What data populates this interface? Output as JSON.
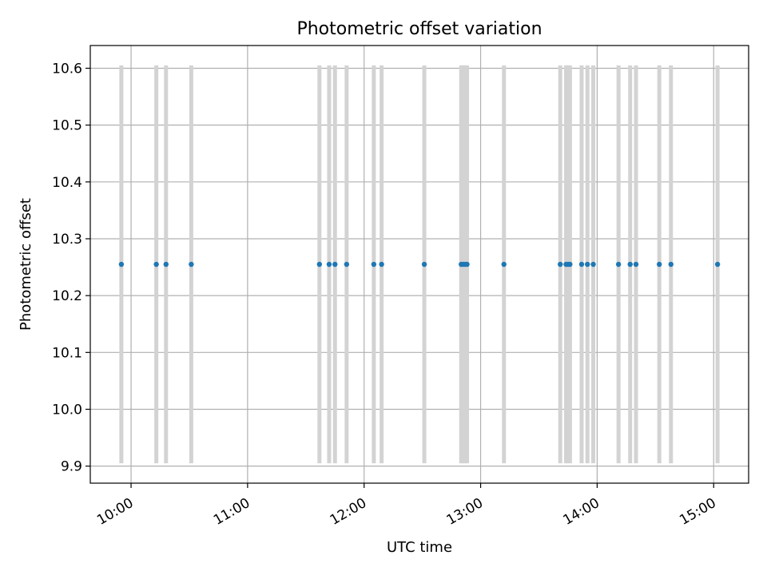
{
  "chart_data": {
    "type": "scatter",
    "title": "Photometric offset variation",
    "xlabel": "UTC time",
    "ylabel": "Photometric offset",
    "xlim": [
      "09:39",
      "15:18"
    ],
    "ylim": [
      9.87,
      10.64
    ],
    "x_ticks": [
      "10:00",
      "11:00",
      "12:00",
      "13:00",
      "14:00",
      "15:00"
    ],
    "y_ticks": [
      9.9,
      10.0,
      10.1,
      10.2,
      10.3,
      10.4,
      10.5,
      10.6
    ],
    "grid": true,
    "error_bar_range": [
      9.905,
      10.605
    ],
    "colors": {
      "points": "#1f77b4",
      "error_bars": "#d3d3d3",
      "grid": "#b0b0b0"
    },
    "series": [
      {
        "x": [
          "09:55",
          "10:13",
          "10:18",
          "10:31",
          "11:37",
          "11:42",
          "11:45",
          "11:51",
          "12:05",
          "12:09",
          "12:31",
          "12:50",
          "12:51",
          "12:52",
          "12:53",
          "13:12",
          "13:41",
          "13:44",
          "13:45",
          "13:46",
          "13:52",
          "13:55",
          "13:58",
          "14:11",
          "14:17",
          "14:20",
          "14:32",
          "14:38",
          "15:02"
        ],
        "y": [
          10.255,
          10.255,
          10.255,
          10.255,
          10.255,
          10.255,
          10.255,
          10.255,
          10.255,
          10.255,
          10.255,
          10.255,
          10.255,
          10.255,
          10.255,
          10.255,
          10.255,
          10.255,
          10.255,
          10.255,
          10.255,
          10.255,
          10.255,
          10.255,
          10.255,
          10.255,
          10.255,
          10.255,
          10.255
        ]
      }
    ]
  }
}
